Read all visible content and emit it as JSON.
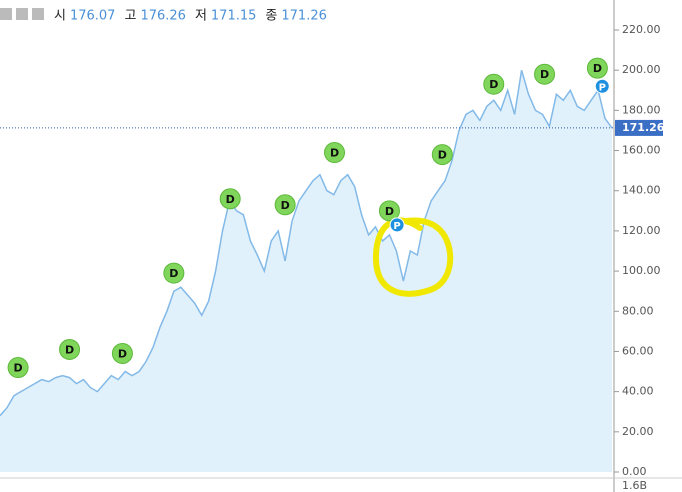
{
  "chart_data": {
    "type": "area",
    "header": [
      {
        "label": "시",
        "value": 176.07
      },
      {
        "label": "고",
        "value": 176.26
      },
      {
        "label": "저",
        "value": 171.15
      },
      {
        "label": "종",
        "value": 171.26
      }
    ],
    "color": "#82b9e8",
    "fill": "#e1f1fb",
    "values": [
      28,
      32,
      38,
      40,
      42,
      44,
      46,
      45,
      47,
      48,
      47,
      44,
      46,
      42,
      40,
      44,
      48,
      46,
      50,
      48,
      50,
      55,
      62,
      72,
      80,
      90,
      92,
      88,
      84,
      78,
      85,
      100,
      120,
      135,
      130,
      128,
      115,
      108,
      100,
      115,
      120,
      105,
      125,
      135,
      140,
      145,
      148,
      140,
      138,
      145,
      148,
      142,
      128,
      118,
      122,
      115,
      118,
      110,
      95,
      110,
      108,
      125,
      135,
      140,
      145,
      155,
      170,
      178,
      180,
      175,
      182,
      185,
      180,
      190,
      178,
      200,
      188,
      180,
      178,
      172,
      188,
      185,
      190,
      182,
      180,
      185,
      190,
      176,
      171.26
    ],
    "last_price": 171.26,
    "events": [
      {
        "label": "D",
        "x": 2.6,
        "y": 52
      },
      {
        "label": "D",
        "x": 10,
        "y": 61
      },
      {
        "label": "D",
        "x": 17.6,
        "y": 59
      },
      {
        "label": "D",
        "x": 25,
        "y": 99
      },
      {
        "label": "D",
        "x": 33.1,
        "y": 136
      },
      {
        "label": "D",
        "x": 41,
        "y": 133
      },
      {
        "label": "D",
        "x": 48.1,
        "y": 159
      },
      {
        "label": "D",
        "x": 56,
        "y": 130
      },
      {
        "label": "D",
        "x": 63.6,
        "y": 158
      },
      {
        "label": "D",
        "x": 71,
        "y": 193
      },
      {
        "label": "D",
        "x": 78.3,
        "y": 198
      },
      {
        "label": "D",
        "x": 85.9,
        "y": 201
      },
      {
        "label": "P",
        "x": 57.1,
        "y": 123
      },
      {
        "label": "P",
        "x": 86.6,
        "y": 192
      }
    ],
    "ylim": [
      0,
      220
    ],
    "yticks": [
      {
        "value": 0,
        "label": "0.00"
      },
      {
        "value": 20,
        "label": "20.00"
      },
      {
        "value": 40,
        "label": "40.00"
      },
      {
        "value": 60,
        "label": "60.00"
      },
      {
        "value": 80,
        "label": "80.00"
      },
      {
        "value": 100,
        "label": "100.00"
      },
      {
        "value": 120,
        "label": "120.00"
      },
      {
        "value": 140,
        "label": "140.00"
      },
      {
        "value": 160,
        "label": "160.00"
      },
      {
        "value": 180,
        "label": "180.00"
      },
      {
        "value": 200,
        "label": "200.00"
      },
      {
        "value": 220,
        "label": "220.00"
      }
    ],
    "volume_label": "1.6B"
  }
}
